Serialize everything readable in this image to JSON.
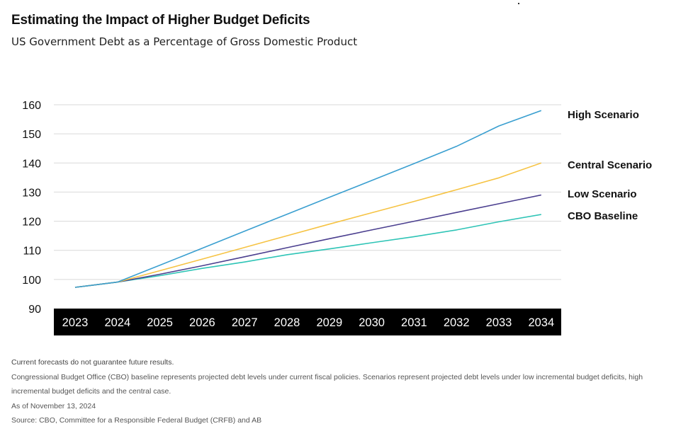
{
  "header": {
    "title": "Estimating the Impact of Higher Budget Deficits",
    "subtitle": "US Government Debt as a Percentage of Gross Domestic Product"
  },
  "chart_data": {
    "type": "line",
    "title": "Estimating the Impact of Higher Budget Deficits",
    "subtitle": "US Government Debt as a Percentage of Gross Domestic Product",
    "xlabel": "",
    "ylabel": "",
    "categories": [
      "2023",
      "2024",
      "2025",
      "2026",
      "2027",
      "2028",
      "2029",
      "2030",
      "2031",
      "2032",
      "2033",
      "2034"
    ],
    "ylim": [
      90,
      160
    ],
    "yticks": [
      "90",
      "100",
      "110",
      "120",
      "130",
      "140",
      "150",
      "160"
    ],
    "grid": true,
    "legend": "right, labels at line ends",
    "series": [
      {
        "name": "High Scenario",
        "color": "#3a9fd0",
        "values": [
          97.3,
          99.1,
          104.9,
          110.7,
          116.6,
          122.4,
          128.2,
          134.0,
          139.8,
          145.7,
          152.7,
          158.0
        ]
      },
      {
        "name": "Central Scenario",
        "color": "#f6c343",
        "values": [
          97.3,
          99.1,
          103.0,
          107.0,
          111.0,
          115.0,
          119.0,
          122.9,
          126.8,
          130.8,
          134.9,
          140.0
        ]
      },
      {
        "name": "Low Scenario",
        "color": "#4b3f8f",
        "values": [
          97.3,
          99.1,
          101.8,
          104.7,
          107.8,
          110.9,
          114.0,
          117.0,
          120.0,
          123.0,
          126.0,
          129.0
        ]
      },
      {
        "name": "CBO Baseline",
        "color": "#2ec4b6",
        "values": [
          97.3,
          99.1,
          101.3,
          103.8,
          106.0,
          108.5,
          110.5,
          112.6,
          114.7,
          117.0,
          119.8,
          122.3
        ]
      }
    ]
  },
  "footnotes": {
    "disclaimer": "Current forecasts do not guarantee future results.",
    "note": "Congressional Budget Office (CBO) baseline represents projected debt levels under current fiscal policies. Scenarios represent projected debt levels under low incremental budget deficits, high incremental budget deficits and the central case.",
    "as_of": "As of November 13, 2024",
    "source": "Source: CBO,  Committee for a Responsible Federal Budget (CRFB) and AB"
  }
}
